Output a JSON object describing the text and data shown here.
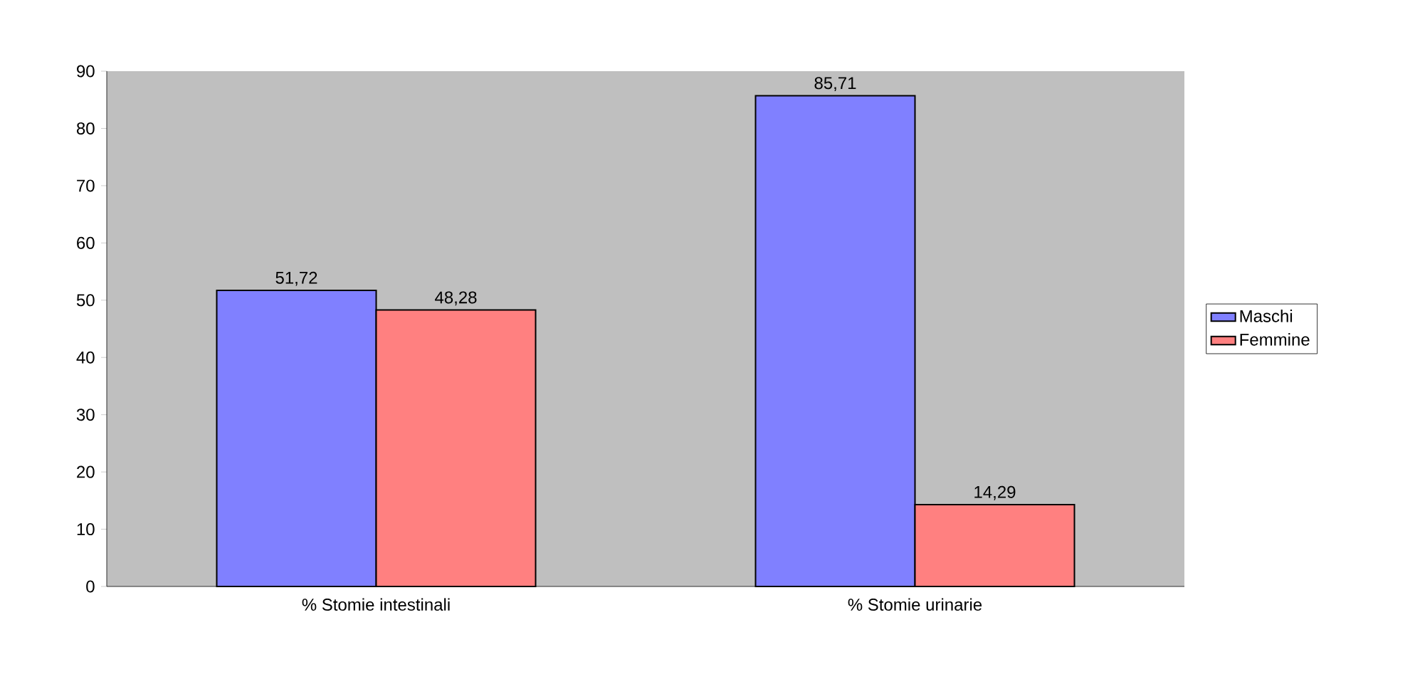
{
  "chart_data": {
    "type": "bar",
    "categories": [
      "% Stomie intestinali",
      "% Stomie urinarie"
    ],
    "series": [
      {
        "name": "Maschi",
        "color": "#8080ff",
        "values": [
          51.72,
          85.71
        ],
        "value_labels": [
          "51,72",
          "85,71"
        ]
      },
      {
        "name": "Femmine",
        "color": "#ff8080",
        "values": [
          48.28,
          14.29
        ],
        "value_labels": [
          "48,28",
          "14,29"
        ]
      }
    ],
    "ylim": [
      0,
      90
    ],
    "yticks": [
      0,
      10,
      20,
      30,
      40,
      50,
      60,
      70,
      80,
      90
    ],
    "grid": false,
    "legend": "right"
  }
}
